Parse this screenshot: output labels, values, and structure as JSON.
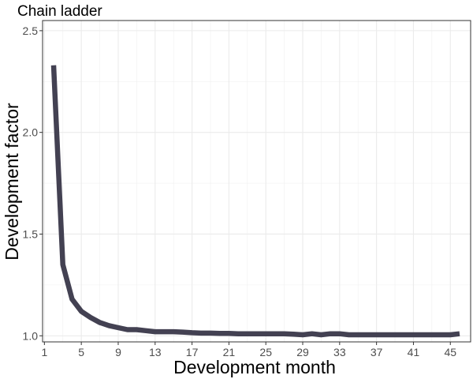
{
  "chart_data": {
    "type": "line",
    "title": "Chain ladder",
    "xlabel": "Development month",
    "ylabel": "Development factor",
    "xlim": [
      0.8,
      47.2
    ],
    "ylim": [
      0.97,
      2.55
    ],
    "x_ticks": [
      1,
      5,
      9,
      13,
      17,
      21,
      25,
      29,
      33,
      37,
      41,
      45
    ],
    "x_tick_labels": [
      "1",
      "5",
      "9",
      "13",
      "17",
      "21",
      "25",
      "29",
      "33",
      "37",
      "41",
      "45"
    ],
    "y_ticks": [
      1.0,
      1.5,
      2.0,
      2.5
    ],
    "y_tick_labels": [
      "1.0",
      "1.5",
      "2.0",
      "2.5"
    ],
    "grid": true,
    "legend": "none",
    "series": [
      {
        "color": "#434152",
        "x": [
          2,
          3,
          4,
          5,
          6,
          7,
          8,
          9,
          10,
          11,
          12,
          13,
          14,
          15,
          16,
          17,
          18,
          19,
          20,
          21,
          22,
          23,
          24,
          25,
          26,
          27,
          28,
          29,
          30,
          31,
          32,
          33,
          34,
          35,
          36,
          37,
          38,
          39,
          40,
          41,
          42,
          43,
          44,
          45,
          46
        ],
        "y": [
          2.33,
          1.35,
          1.18,
          1.12,
          1.09,
          1.065,
          1.05,
          1.04,
          1.03,
          1.03,
          1.025,
          1.02,
          1.02,
          1.02,
          1.018,
          1.015,
          1.013,
          1.013,
          1.012,
          1.012,
          1.01,
          1.01,
          1.01,
          1.01,
          1.01,
          1.01,
          1.008,
          1.005,
          1.01,
          1.005,
          1.01,
          1.01,
          1.005,
          1.005,
          1.005,
          1.005,
          1.005,
          1.005,
          1.005,
          1.005,
          1.005,
          1.005,
          1.005,
          1.005,
          1.01
        ]
      }
    ]
  }
}
